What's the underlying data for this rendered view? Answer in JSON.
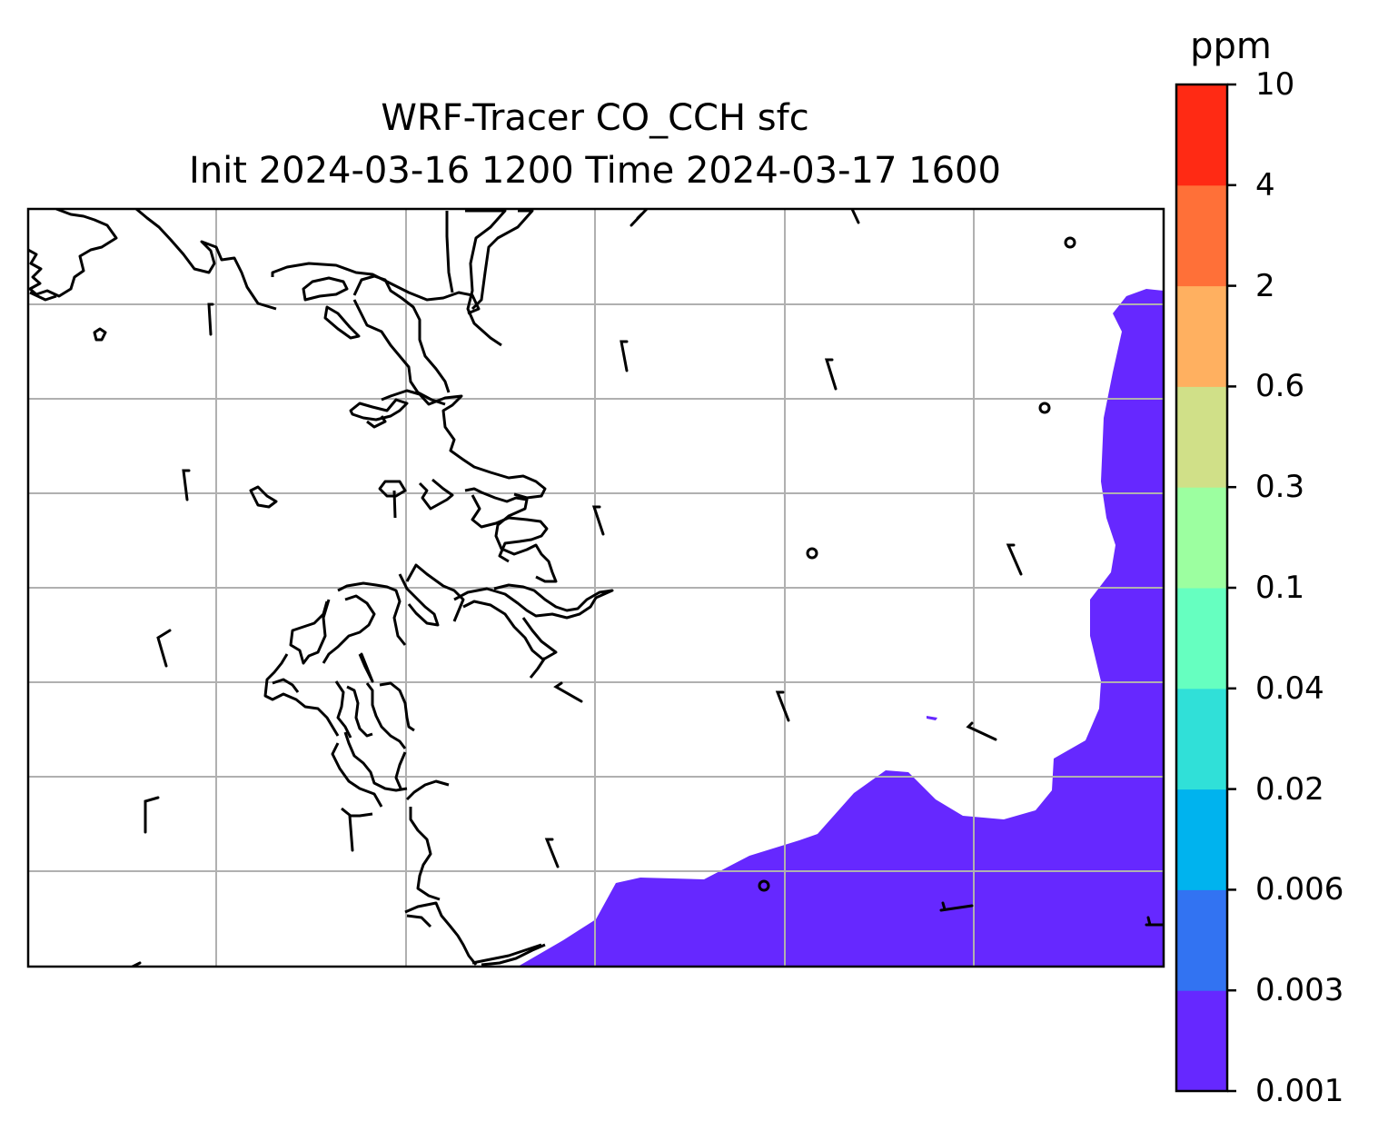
{
  "title": {
    "line1": "WRF-Tracer CO_CCH sfc",
    "line2": "Init 2024-03-16 1200 Time 2024-03-17 1600"
  },
  "colorbar": {
    "unit": "ppm",
    "levels": [
      "0.001",
      "0.003",
      "0.006",
      "0.02",
      "0.04",
      "0.1",
      "0.3",
      "0.6",
      "2",
      "4",
      "10"
    ],
    "colors": [
      "#6628ff",
      "#3273f2",
      "#00b3ee",
      "#30e0d8",
      "#66ffc0",
      "#9cffa0",
      "#d0e088",
      "#ffb060",
      "#ff7038",
      "#ff2a14"
    ]
  },
  "map": {
    "grid": "on",
    "coastline_color": "#000000",
    "filled_level_color": "#6628ff",
    "filled_level_range": [
      "0.001",
      "0.003"
    ]
  }
}
